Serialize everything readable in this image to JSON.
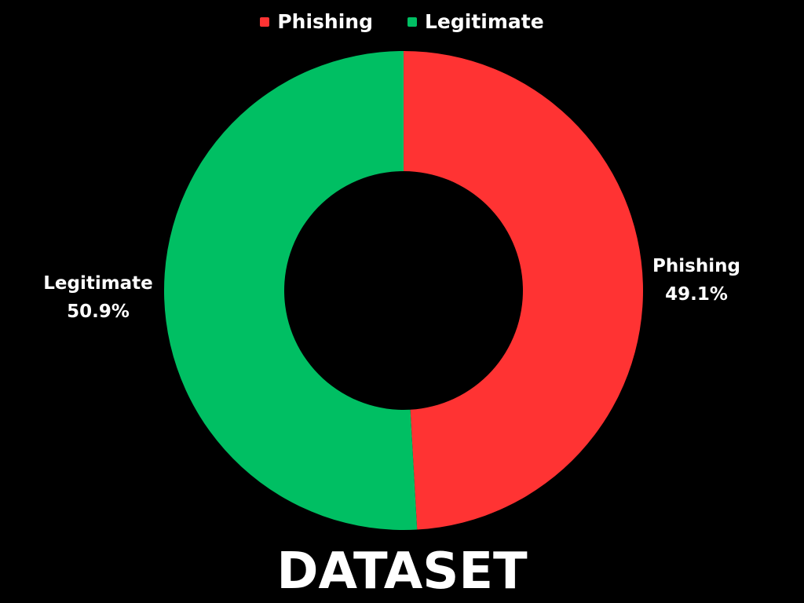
{
  "chart_data": {
    "type": "pie",
    "title": "DATASET",
    "legend_position": "top-center",
    "categories": [
      "Phishing",
      "Legitimate"
    ],
    "values": [
      49.1,
      50.9
    ],
    "value_labels": [
      "49.1%",
      "50.9%"
    ],
    "colors": [
      "#ff3333",
      "#00bf63"
    ],
    "donut": true
  },
  "legend": {
    "items": [
      {
        "label": "Phishing",
        "color": "#ff3333"
      },
      {
        "label": "Legitimate",
        "color": "#00bf63"
      }
    ]
  }
}
